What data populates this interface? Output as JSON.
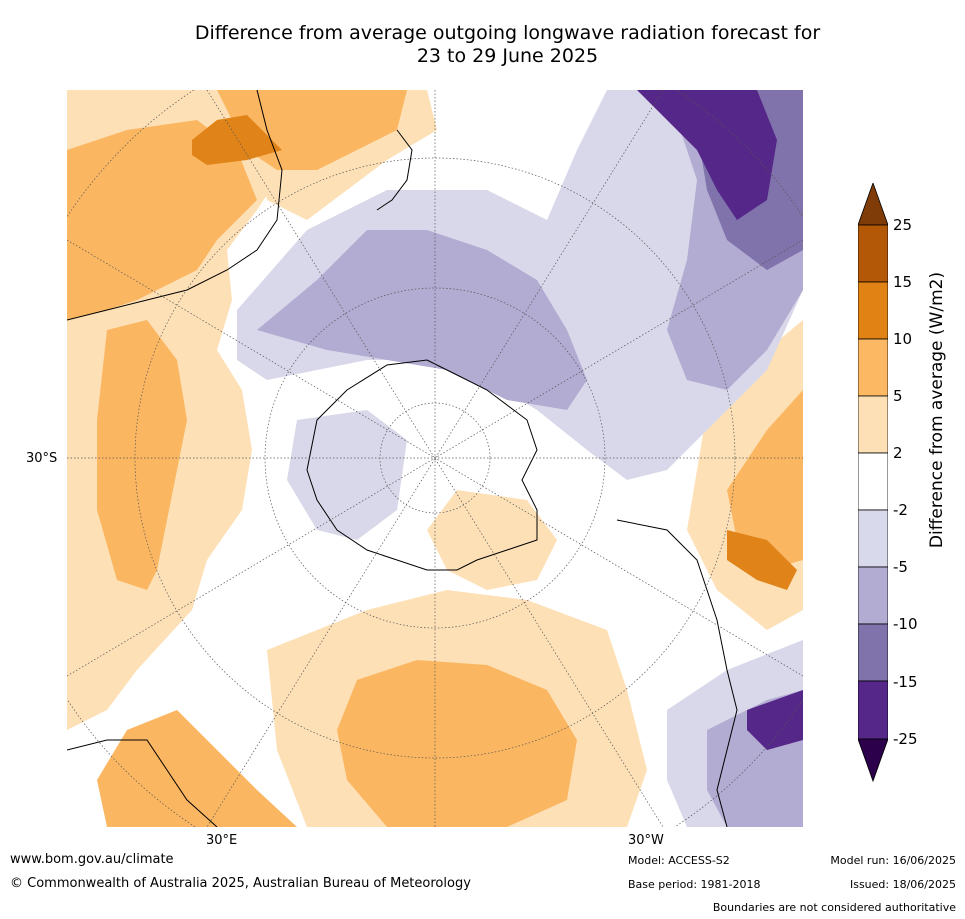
{
  "title_line1": "Difference from average outgoing longwave radiation forecast for",
  "title_line2": "23 to 29 June 2025",
  "map": {
    "projection": "south-polar-stereographic",
    "lat_label": "30°S",
    "lon_labels": [
      "30°E",
      "30°W"
    ],
    "colors": {
      "ocean": "#ffffff",
      "pos_2_5": "#fde0b6",
      "pos_5_10": "#fbb661",
      "pos_10_15": "#e08318",
      "neg_2_5": "#d8d8ea",
      "neg_5_10": "#b2abd2",
      "neg_10_15": "#8073ac",
      "neg_15_25": "#542788"
    }
  },
  "legend": {
    "title": "Difference from average (W/m2)",
    "ticks": [
      "25",
      "15",
      "10",
      "5",
      "2",
      "-2",
      "-5",
      "-10",
      "-15",
      "-25"
    ],
    "colors": [
      "#7f3b08",
      "#b35806",
      "#e08214",
      "#fdb863",
      "#fee0b6",
      "#ffffff",
      "#d8daeb",
      "#b2abd2",
      "#8073ac",
      "#542788",
      "#2d004b"
    ]
  },
  "footer": {
    "url": "www.bom.gov.au/climate",
    "copyright": "© Commonwealth of Australia 2025, Australian Bureau of Meteorology",
    "model": "Model: ACCESS-S2",
    "base_period": "Base period: 1981-2018",
    "model_run": "Model run: 16/06/2025",
    "issued": "Issued: 18/06/2025",
    "disclaimer": "Boundaries are not considered authoritative"
  }
}
